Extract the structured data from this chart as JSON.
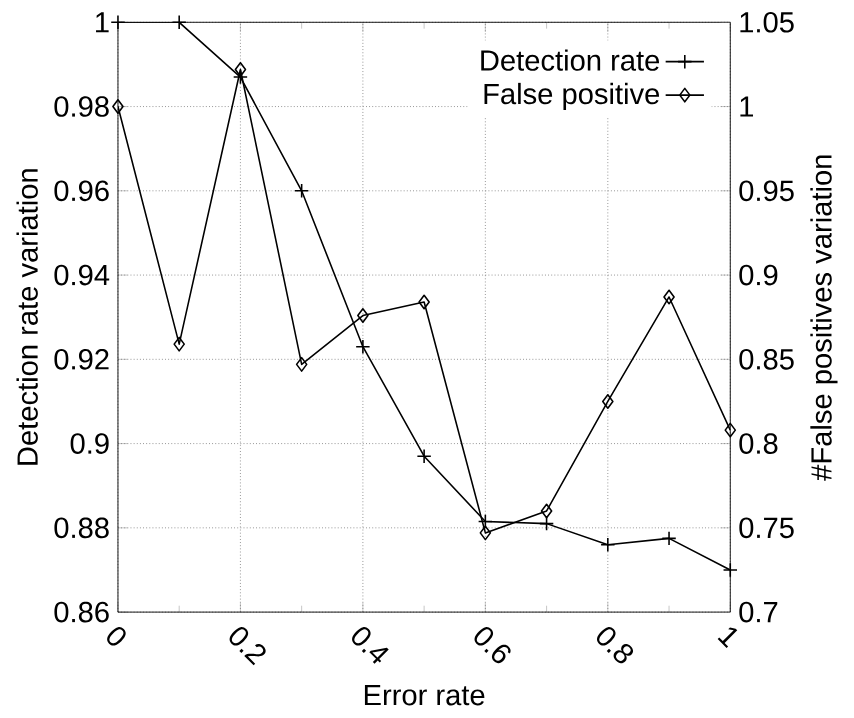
{
  "chart_data": {
    "type": "line",
    "xlabel": "Error rate",
    "ylabel": "Detection rate variation",
    "y2label": "#False positives variation",
    "x": [
      0,
      0.1,
      0.2,
      0.3,
      0.4,
      0.5,
      0.6,
      0.7,
      0.8,
      0.9,
      1
    ],
    "series": [
      {
        "name": "Detection rate",
        "color": "#000000",
        "marker": "cross",
        "values": [
          1,
          1,
          0.987,
          0.96,
          0.923,
          0.897,
          0.8815,
          0.881,
          0.876,
          0.8775,
          0.87
        ]
      },
      {
        "name": "False positive",
        "color": "#000000",
        "marker": "diamond",
        "axis": "y2",
        "values": [
          1.0,
          0.859,
          1.022,
          0.847,
          0.876,
          0.884,
          0.747,
          0.76,
          0.825,
          0.887,
          0.808
        ]
      }
    ],
    "xlim": [
      0,
      1
    ],
    "xticks": [
      0,
      0.2,
      0.4,
      0.6,
      0.8,
      1
    ],
    "ylim": [
      0.86,
      1
    ],
    "yticks": [
      0.86,
      0.88,
      0.9,
      0.92,
      0.94,
      0.96,
      0.98,
      1
    ],
    "y2lim": [
      0.7,
      1.05
    ],
    "y2ticks": [
      0.7,
      0.75,
      0.8,
      0.85,
      0.9,
      0.95,
      1,
      1.05
    ],
    "grid": true,
    "legend": "top right",
    "line_style": "solid"
  }
}
